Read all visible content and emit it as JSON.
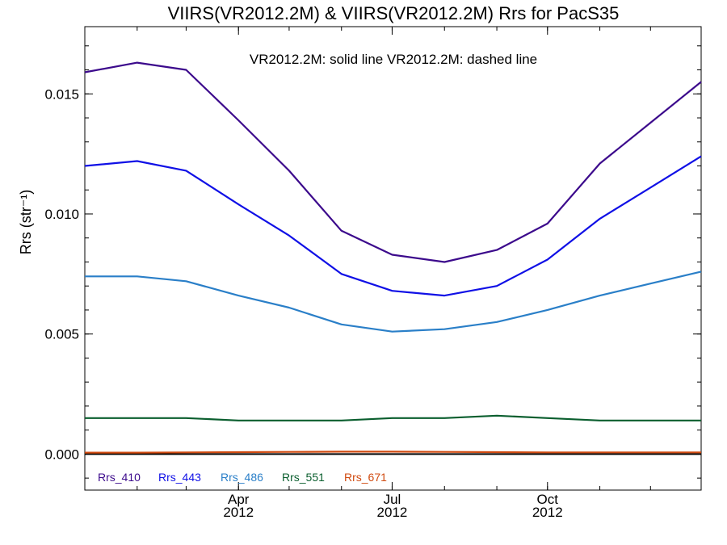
{
  "chart_data": {
    "type": "line",
    "title": "VIIRS(VR2012.2M) & VIIRS(VR2012.2M)  Rrs for PacS35",
    "ylabel": "Rrs (str⁻¹)",
    "annotation": "VR2012.2M: solid line   VR2012.2M: dashed line",
    "x_tick_labels": [
      {
        "month": "Apr",
        "year": "2012",
        "x": "2012-04-01"
      },
      {
        "month": "Jul",
        "year": "2012",
        "x": "2012-07-01"
      },
      {
        "month": "Oct",
        "year": "2012",
        "x": "2012-10-01"
      }
    ],
    "x_range": [
      "2012-01-01",
      "2012-12-31"
    ],
    "y_ticks": [
      "0.000",
      "0.005",
      "0.010",
      "0.015"
    ],
    "y_tick_values": [
      0.0,
      0.005,
      0.01,
      0.015
    ],
    "ylim": [
      -0.0015,
      0.0178
    ],
    "grid": false,
    "legend_position": "bottom-left",
    "x": [
      "2012-01-01",
      "2012-02-01",
      "2012-03-01",
      "2012-04-01",
      "2012-05-01",
      "2012-06-01",
      "2012-07-01",
      "2012-08-01",
      "2012-09-01",
      "2012-10-01",
      "2012-11-01",
      "2012-12-01"
    ],
    "series": [
      {
        "name": "Rrs_410",
        "color": "#3c0a8c",
        "values": [
          0.0159,
          0.0163,
          0.016,
          0.0139,
          0.0118,
          0.0093,
          0.0083,
          0.008,
          0.0085,
          0.0096,
          0.0121,
          0.0138
        ]
      },
      {
        "name": "Rrs_443",
        "color": "#1010e6",
        "values": [
          0.012,
          0.0122,
          0.0118,
          0.0104,
          0.0091,
          0.0075,
          0.0068,
          0.0066,
          0.007,
          0.0081,
          0.0098,
          0.0111
        ]
      },
      {
        "name": "Rrs_486",
        "color": "#2a7fc8",
        "values": [
          0.0074,
          0.0074,
          0.0072,
          0.0066,
          0.0061,
          0.0054,
          0.0051,
          0.0052,
          0.0055,
          0.006,
          0.0066,
          0.0071
        ]
      },
      {
        "name": "Rrs_551",
        "color": "#0a5e2e",
        "values": [
          0.0015,
          0.0015,
          0.0015,
          0.0014,
          0.0014,
          0.0014,
          0.0015,
          0.0015,
          0.0016,
          0.0015,
          0.0014,
          0.0014
        ]
      },
      {
        "name": "Rrs_671",
        "color": "#d04a10",
        "values": [
          6e-05,
          6e-05,
          7e-05,
          8e-05,
          9e-05,
          0.0001,
          0.0001,
          9e-05,
          8e-05,
          7e-05,
          7e-05,
          7e-05
        ]
      }
    ],
    "zero_line": true
  }
}
